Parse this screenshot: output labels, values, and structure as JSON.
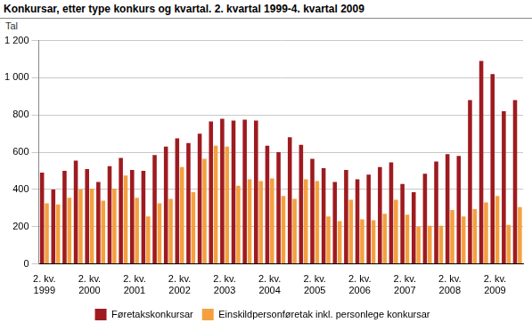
{
  "chart_data": {
    "type": "bar",
    "title": "Konkursar, etter type konkurs og kvartal. 2. kvartal 1999-4. kvartal 2009",
    "y_label": "Tal",
    "categories": [
      [
        "2. kv.",
        "1999"
      ],
      null,
      null,
      null,
      [
        "2. kv.",
        "2000"
      ],
      null,
      null,
      null,
      [
        "2. kv.",
        "2001"
      ],
      null,
      null,
      null,
      [
        "2. kv.",
        "2002"
      ],
      null,
      null,
      null,
      [
        "2. kv.",
        "2003"
      ],
      null,
      null,
      null,
      [
        "2. kv.",
        "2004"
      ],
      null,
      null,
      null,
      [
        "2. kv.",
        "2005"
      ],
      null,
      null,
      null,
      [
        "2. kv.",
        "2006"
      ],
      null,
      null,
      null,
      [
        "2. kv.",
        "2007"
      ],
      null,
      null,
      null,
      [
        "2. kv.",
        "2008"
      ],
      null,
      null,
      null,
      [
        "2. kv.",
        "2009"
      ],
      null,
      null
    ],
    "series": [
      {
        "name": "Føretakskonkursar",
        "color": "#9e1b20",
        "values": [
          490,
          400,
          500,
          555,
          510,
          440,
          525,
          570,
          505,
          500,
          585,
          630,
          675,
          650,
          700,
          765,
          780,
          770,
          775,
          770,
          635,
          600,
          680,
          640,
          565,
          515,
          440,
          505,
          455,
          480,
          520,
          545,
          430,
          385,
          485,
          550,
          590,
          580,
          880,
          1090,
          1020,
          820,
          880
        ]
      },
      {
        "name": "Einskildpersonføretak inkl. personlege konkursar",
        "color": "#f4a040",
        "values": [
          325,
          320,
          355,
          400,
          405,
          340,
          405,
          475,
          355,
          255,
          325,
          350,
          520,
          385,
          565,
          635,
          630,
          420,
          455,
          445,
          460,
          365,
          350,
          455,
          445,
          255,
          230,
          345,
          240,
          235,
          270,
          345,
          265,
          200,
          205,
          205,
          290,
          255,
          295,
          330,
          365,
          210,
          305
        ]
      }
    ],
    "ylim": [
      0,
      1200
    ],
    "yticks": [
      0,
      200,
      400,
      600,
      800,
      {
        "value": 1000,
        "label": "1 000"
      },
      {
        "value": 1200,
        "label": "1 200"
      }
    ],
    "grid": true,
    "legend": "bottom"
  }
}
